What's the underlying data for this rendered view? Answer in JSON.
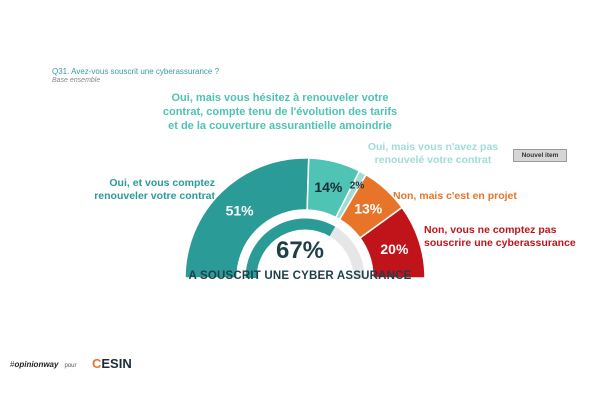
{
  "header": {
    "question": "Q31. Avez-vous souscrit une cyberassurance ?",
    "base": "Base ensemble"
  },
  "badge": "Nouvel item",
  "chart_data": {
    "type": "pie",
    "categories": [
      "Oui, et vous comptez renouveler votre contrat",
      "Oui, mais vous hésitez à renouveler votre contrat, compte tenu de l'évolution des tarifs et de la couverture assurantielle amoindrie",
      "Oui, mais vous n'avez pas renouvelé votre contrat",
      "Non, mais c'est en projet",
      "Non, vous ne comptez pas souscrire une cyberassurance"
    ],
    "values": [
      51,
      14,
      2,
      13,
      20
    ],
    "value_labels": [
      "51%",
      "14%",
      "2%",
      "13%",
      "20%"
    ],
    "colors": [
      "#2a9b97",
      "#4fc3b4",
      "#9fdcd6",
      "#e8742a",
      "#c0141a"
    ],
    "label_lines": [
      [
        "Oui, et vous comptez",
        "renouveler votre contrat"
      ],
      [
        "Oui, mais vous hésitez à renouveler votre",
        "contrat, compte tenu de l'évolution des tarifs",
        "et de la couverture assurantielle amoindrie"
      ],
      [
        "Oui, mais vous n'avez pas",
        "renouvelé votre contrat"
      ],
      [
        "Non, mais c'est en projet"
      ],
      [
        "Non, vous ne comptez pas",
        "souscrire une cyberassurance"
      ]
    ],
    "summary_value": "67%",
    "summary_label": "A SOUSCRIT UNE CYBER ASSURANCE"
  },
  "footer": {
    "brand_prefix": "#",
    "brand": "opinionway",
    "pour": "pour",
    "client_c": "C",
    "client_rest": "ESIN"
  }
}
